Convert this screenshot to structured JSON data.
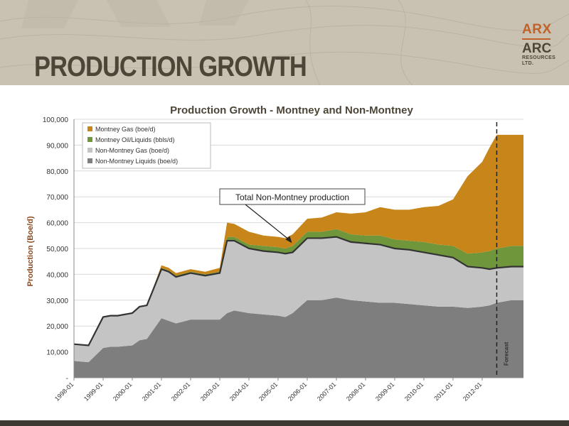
{
  "slide": {
    "title": "PRODUCTION GROWTH",
    "logo": {
      "top": "ARX",
      "main": "ARC",
      "sub_line1": "RESOURCES",
      "sub_line2": "LTD."
    }
  },
  "colors": {
    "header_bg": "#c9c2b2",
    "title": "#4d4638",
    "montney_gas": "#c8861a",
    "montney_oil": "#6f963b",
    "non_montney_gas": "#c4c4c4",
    "non_montney_liquids": "#7e7e7e",
    "total_line": "#333333"
  },
  "chart_data": {
    "type": "area",
    "stacked": true,
    "title": "Production Growth - Montney and Non-Montney",
    "ylabel": "Production (Boe/d)",
    "xlabel": "",
    "ylim": [
      0,
      100000
    ],
    "yticks": [
      0,
      10000,
      20000,
      30000,
      40000,
      50000,
      60000,
      70000,
      80000,
      90000,
      100000
    ],
    "ytick_labels": [
      "-",
      "10,000",
      "20,000",
      "30,000",
      "40,000",
      "50,000",
      "60,000",
      "70,000",
      "80,000",
      "90,000",
      "100,000"
    ],
    "xlim": [
      "1998-01",
      "2013-06"
    ],
    "xtick_labels": [
      "1998-01",
      "1999-01",
      "2000-01",
      "2001-01",
      "2002-01",
      "2003-01",
      "2004-01",
      "2005-01",
      "2006-01",
      "2007-01",
      "2008-01",
      "2009-01",
      "2010-01",
      "2011-01",
      "2012-01"
    ],
    "grid": "horizontal",
    "legend": "top-left",
    "x": [
      "1998-01",
      "1998-07",
      "1999-01",
      "1999-04",
      "1999-07",
      "2000-01",
      "2000-04",
      "2000-07",
      "2001-01",
      "2001-04",
      "2001-07",
      "2002-01",
      "2002-07",
      "2003-01",
      "2003-04",
      "2003-07",
      "2004-01",
      "2004-07",
      "2005-01",
      "2005-04",
      "2005-07",
      "2006-01",
      "2006-07",
      "2007-01",
      "2007-07",
      "2008-01",
      "2008-07",
      "2009-01",
      "2009-07",
      "2010-01",
      "2010-07",
      "2011-01",
      "2011-07",
      "2012-01",
      "2012-04",
      "2012-07",
      "2013-01",
      "2013-06"
    ],
    "series": [
      {
        "name": "Non-Montney Liquids (boe/d)",
        "color": "#7e7e7e",
        "values": [
          6500,
          6000,
          11500,
          12000,
          12000,
          12500,
          14500,
          15000,
          23000,
          22000,
          21000,
          22500,
          22500,
          22500,
          25000,
          26000,
          25000,
          24500,
          24000,
          23500,
          25000,
          30000,
          30000,
          31000,
          30000,
          29500,
          29000,
          29000,
          28500,
          28000,
          27500,
          27500,
          27000,
          27500,
          28000,
          29000,
          30000,
          30000
        ]
      },
      {
        "name": "Non-Montney Gas (boe/d)",
        "color": "#c4c4c4",
        "values": [
          6500,
          6500,
          12000,
          12000,
          12000,
          12500,
          13000,
          13000,
          19000,
          19000,
          18000,
          18000,
          17000,
          18000,
          28000,
          27000,
          25000,
          24500,
          24500,
          24500,
          23500,
          24000,
          24000,
          23500,
          22500,
          22500,
          22500,
          21000,
          21000,
          20500,
          20000,
          19000,
          16000,
          15000,
          14000,
          13500,
          13000,
          13000
        ]
      },
      {
        "name": "Montney Oil/Liquids (bbls/d)",
        "color": "#6f963b",
        "values": [
          0,
          0,
          0,
          0,
          0,
          0,
          0,
          0,
          500,
          500,
          500,
          500,
          500,
          500,
          1500,
          1500,
          1500,
          2000,
          2000,
          2000,
          2500,
          2500,
          2500,
          3000,
          3000,
          3000,
          3500,
          3500,
          3500,
          4000,
          4000,
          4500,
          5000,
          6000,
          7000,
          7500,
          8000,
          8000
        ]
      },
      {
        "name": "Montney Gas (boe/d)",
        "color": "#c8861a",
        "values": [
          0,
          0,
          0,
          0,
          0,
          0,
          0,
          0,
          1000,
          1000,
          1000,
          1000,
          1000,
          1500,
          5500,
          5000,
          5000,
          4000,
          4000,
          4000,
          4500,
          5000,
          5500,
          6500,
          8000,
          9000,
          11000,
          11500,
          12000,
          13500,
          15000,
          18000,
          30000,
          35000,
          40000,
          44000,
          43000,
          43000
        ]
      }
    ],
    "annotations": [
      {
        "text": "Total Non-Montney production",
        "x": "2005-07",
        "y": 51000
      },
      {
        "text": "Forecast",
        "x": "2012-07",
        "type": "vertical-dashed-line"
      }
    ]
  }
}
